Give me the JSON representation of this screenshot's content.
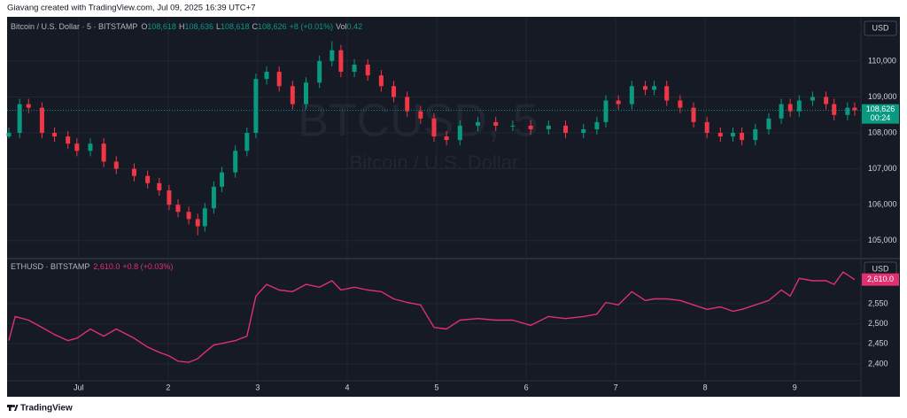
{
  "caption": "Giavang created with TradingView.com, Jul 09, 2025 16:39 UTC+7",
  "footer": "TradingView",
  "chart_data": [
    {
      "type": "candlestick",
      "title": "Bitcoin / U.S. Dollar · 5 · BITSTAMP",
      "ohlc_legend": {
        "o_label": "O",
        "o": "108,618",
        "h_label": "H",
        "h": "108,636",
        "l_label": "L",
        "l": "108,618",
        "c_label": "C",
        "c": "108,626",
        "change": "+8 (+0.01%)",
        "vol_label": "Vol",
        "vol": "0.42"
      },
      "watermark": "BTCUSD, 5",
      "watermark_subtitle": "Bitcoin / U.S. Dollar",
      "currency": "USD",
      "last_price_label": "108,626",
      "countdown": "00:24",
      "up_color": "#089981",
      "down_color": "#f23645",
      "x": [
        0.22,
        0.34,
        0.44,
        0.59,
        0.73,
        0.88,
        0.98,
        1.13,
        1.28,
        1.42,
        1.62,
        1.77,
        1.9,
        2.01,
        2.11,
        2.23,
        2.33,
        2.41,
        2.51,
        2.6,
        2.75,
        2.88,
        2.98,
        3.1,
        3.24,
        3.39,
        3.54,
        3.69,
        3.83,
        3.93,
        4.08,
        4.23,
        4.38,
        4.52,
        4.67,
        4.82,
        4.97,
        5.11,
        5.26,
        5.46,
        5.66,
        5.85,
        6.05,
        6.25,
        6.44,
        6.64,
        6.79,
        6.89,
        7.03,
        7.18,
        7.33,
        7.43,
        7.57,
        7.72,
        7.87,
        8.02,
        8.17,
        8.31,
        8.41,
        8.56,
        8.71,
        8.85,
        8.95,
        9.05,
        9.2,
        9.35,
        9.44,
        9.59,
        9.67
      ],
      "open": [
        107900,
        108000,
        108800,
        108700,
        108000,
        107900,
        107700,
        107500,
        107700,
        107200,
        107000,
        106800,
        106600,
        106400,
        106000,
        105800,
        105600,
        105400,
        105900,
        106500,
        106900,
        107500,
        108000,
        109500,
        109700,
        109300,
        108800,
        109400,
        110000,
        110300,
        109700,
        109900,
        109600,
        109300,
        109000,
        108600,
        108400,
        107900,
        107800,
        108200,
        108300,
        108200,
        108200,
        108100,
        108200,
        108000,
        108100,
        108300,
        108900,
        108800,
        109300,
        109200,
        109300,
        108900,
        108700,
        108300,
        108000,
        107900,
        108000,
        107800,
        108100,
        108400,
        108800,
        108600,
        108900,
        109000,
        108800,
        108500,
        108700
      ],
      "high": [
        108150,
        108950,
        108950,
        108850,
        108150,
        108050,
        107850,
        107850,
        107850,
        107350,
        107150,
        106950,
        106750,
        106550,
        106150,
        105950,
        105750,
        106050,
        106650,
        107050,
        107650,
        108150,
        109650,
        109850,
        109850,
        109450,
        109550,
        110150,
        110550,
        110450,
        110050,
        110050,
        109750,
        109450,
        109150,
        108750,
        108550,
        108050,
        108350,
        108450,
        108450,
        108350,
        108350,
        108350,
        108350,
        108250,
        108450,
        109050,
        109050,
        109450,
        109450,
        109450,
        109450,
        109050,
        108850,
        108450,
        108150,
        108150,
        108150,
        108250,
        108550,
        108950,
        108950,
        109050,
        109150,
        109150,
        108950,
        108850,
        108850
      ],
      "low": [
        107850,
        107850,
        108550,
        107850,
        107750,
        107550,
        107350,
        107350,
        107050,
        106850,
        106650,
        106450,
        106250,
        105850,
        105650,
        105450,
        105150,
        105250,
        105750,
        106350,
        106750,
        107350,
        107850,
        109350,
        109150,
        108650,
        108650,
        109250,
        109850,
        109550,
        109550,
        109450,
        109150,
        108850,
        108450,
        108250,
        107750,
        107650,
        107650,
        108050,
        108050,
        108050,
        107950,
        107950,
        107850,
        107850,
        107950,
        108150,
        108650,
        108650,
        109050,
        109050,
        108750,
        108550,
        108150,
        107850,
        107750,
        107750,
        107650,
        107650,
        107950,
        108250,
        108450,
        108450,
        108750,
        108650,
        108350,
        108350,
        108476
      ],
      "close": [
        108000,
        108800,
        108700,
        108000,
        107900,
        107700,
        107500,
        107700,
        107200,
        107000,
        106800,
        106600,
        106400,
        106000,
        105800,
        105600,
        105400,
        105900,
        106500,
        106900,
        107500,
        108000,
        109500,
        109700,
        109300,
        108800,
        109400,
        110000,
        110300,
        109700,
        109900,
        109600,
        109300,
        109000,
        108600,
        108400,
        107900,
        107800,
        108200,
        108300,
        108200,
        108200,
        108100,
        108200,
        108000,
        108100,
        108300,
        108900,
        108800,
        109300,
        109200,
        109300,
        108900,
        108700,
        108300,
        108000,
        107900,
        108000,
        107800,
        108100,
        108400,
        108800,
        108600,
        108900,
        109000,
        108800,
        108500,
        108700,
        108626
      ],
      "xlim": [
        0.2,
        9.74
      ],
      "xticks": [
        1,
        2,
        3,
        4,
        5,
        6,
        7,
        8,
        9
      ],
      "ylim": [
        104500,
        111230
      ],
      "yticks": [
        {
          "value": 105000,
          "label": "105,000"
        },
        {
          "value": 106000,
          "label": "106,000"
        },
        {
          "value": 107000,
          "label": "107,000"
        },
        {
          "value": 108000,
          "label": "108,000"
        },
        {
          "value": 109000,
          "label": "109,000"
        },
        {
          "value": 110000,
          "label": "110,000"
        }
      ],
      "grid": true
    },
    {
      "type": "line",
      "title": "ETHUSD · BITSTAMP",
      "last_value": "2,610.0",
      "change": "+0.8 (+0.03%)",
      "currency": "USD",
      "color": "#e0306f",
      "x": [
        0.22,
        0.29,
        0.44,
        0.59,
        0.73,
        0.88,
        0.98,
        1.13,
        1.28,
        1.42,
        1.62,
        1.77,
        1.9,
        2.01,
        2.11,
        2.23,
        2.33,
        2.41,
        2.51,
        2.6,
        2.75,
        2.88,
        2.98,
        3.1,
        3.24,
        3.39,
        3.54,
        3.69,
        3.83,
        3.93,
        4.08,
        4.23,
        4.38,
        4.52,
        4.67,
        4.82,
        4.97,
        5.11,
        5.26,
        5.46,
        5.66,
        5.85,
        6.05,
        6.25,
        6.44,
        6.64,
        6.79,
        6.89,
        7.03,
        7.18,
        7.33,
        7.43,
        7.57,
        7.72,
        7.87,
        8.02,
        8.17,
        8.31,
        8.41,
        8.56,
        8.71,
        8.85,
        8.95,
        9.05,
        9.2,
        9.35,
        9.44,
        9.54,
        9.67
      ],
      "values": [
        2458,
        2518,
        2509,
        2491,
        2473,
        2458,
        2464,
        2487,
        2469,
        2487,
        2464,
        2442,
        2429,
        2420,
        2407,
        2404,
        2413,
        2429,
        2447,
        2451,
        2458,
        2469,
        2569,
        2598,
        2584,
        2580,
        2598,
        2591,
        2607,
        2584,
        2591,
        2584,
        2580,
        2562,
        2553,
        2547,
        2491,
        2487,
        2509,
        2513,
        2509,
        2509,
        2496,
        2518,
        2513,
        2518,
        2524,
        2553,
        2547,
        2580,
        2558,
        2562,
        2562,
        2558,
        2547,
        2536,
        2542,
        2531,
        2536,
        2547,
        2558,
        2584,
        2569,
        2613,
        2607,
        2607,
        2598,
        2629,
        2610
      ],
      "xlim": [
        0.2,
        9.74
      ],
      "xticks": [
        {
          "value": 1,
          "label": "Jul"
        },
        2,
        3,
        4,
        5,
        6,
        7,
        8,
        9
      ],
      "ylim": [
        2358,
        2660
      ],
      "yticks": [
        {
          "value": 2400,
          "label": "2,400"
        },
        {
          "value": 2450,
          "label": "2,450"
        },
        {
          "value": 2500,
          "label": "2,500"
        },
        {
          "value": 2550,
          "label": "2,550"
        }
      ],
      "grid": true
    }
  ]
}
